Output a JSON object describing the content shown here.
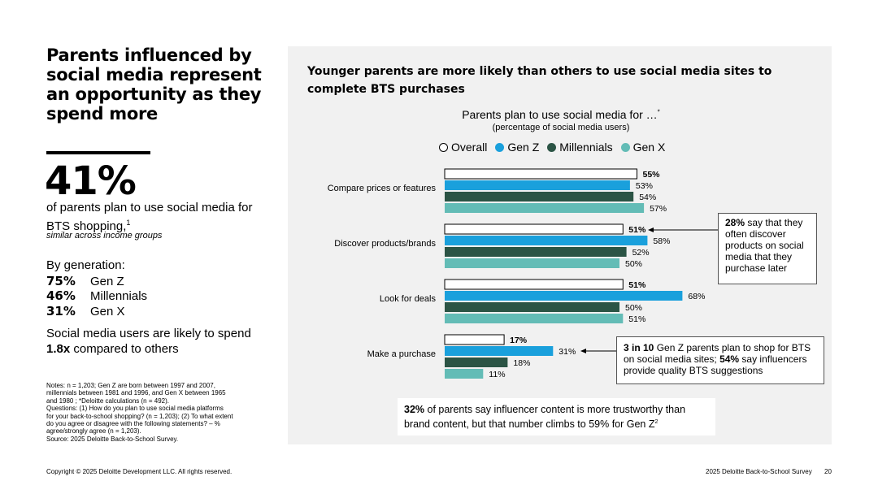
{
  "headline": [
    "Parents influenced by",
    "social media represent",
    "an opportunity as they",
    "spend more"
  ],
  "big_stat": "41%",
  "stat_text": "of parents plan to use social media for BTS shopping,",
  "stat_footnote": "1",
  "stat_sub": "similar across income groups",
  "generation": {
    "heading": "By generation:",
    "rows": [
      {
        "pct": "75%",
        "label": "Gen Z"
      },
      {
        "pct": "46%",
        "label": "Millennials"
      },
      {
        "pct": "31%",
        "label": "Gen X"
      }
    ]
  },
  "spend": {
    "before": "Social media users are likely to spend ",
    "bold": "1.8x",
    "after": " compared to others"
  },
  "notes": [
    "Notes: n = 1,203; Gen Z are born between 1997 and 2007,",
    "millennials between 1981 and 1996, and Gen X between 1965",
    "and 1980 ; *Deloitte calculations (n = 492).",
    "Questions: (1) How do you plan to use social media platforms",
    "for your back-to-school shopping? (n = 1,203); (2) To what extent",
    "do you agree or disagree with the following statements? – %",
    "agree/strongly agree (n = 1,203).",
    "Source: 2025 Deloitte Back-to-School Survey."
  ],
  "panel_title": "Younger parents are more likely than others to use social media sites to complete BTS purchases",
  "chart_data": {
    "type": "bar",
    "orientation": "horizontal",
    "title": "Parents plan to use social media for …",
    "title_footnote": "*",
    "subtitle": "(percentage of social media users)",
    "categories": [
      "Compare prices or features",
      "Discover products/brands",
      "Look for deals",
      "Make a purchase"
    ],
    "series": [
      {
        "name": "Overall",
        "color": "#ffffff",
        "values": [
          55,
          51,
          51,
          17
        ]
      },
      {
        "name": "Gen Z",
        "color": "#1aa0dc",
        "values": [
          53,
          58,
          68,
          31
        ]
      },
      {
        "name": "Millennials",
        "color": "#2b5445",
        "values": [
          54,
          52,
          50,
          18
        ]
      },
      {
        "name": "Gen X",
        "color": "#63bcb6",
        "values": [
          57,
          50,
          51,
          11
        ]
      }
    ],
    "xlim": [
      0,
      68
    ],
    "value_suffix": "%",
    "grid": false,
    "legend_position": "top"
  },
  "callouts": {
    "discover": {
      "bold": "28%",
      "text": " say that they often discover products on social media that they purchase later"
    },
    "purchase": {
      "bold1": "3 in 10",
      "text1": " Gen Z parents plan to shop for BTS on social media sites; ",
      "bold2": "54%",
      "text2": " say influencers provide quality BTS suggestions"
    },
    "influencer": {
      "bold": "32%",
      "text": " of parents say influencer content is more trustworthy than brand content, but that number climbs to 59% for Gen Z",
      "footnote": "2"
    }
  },
  "footer": {
    "copyright": "Copyright © 2025 Deloitte Development LLC. All rights reserved.",
    "report": "2025 Deloitte Back-to-School Survey",
    "page": "20"
  }
}
